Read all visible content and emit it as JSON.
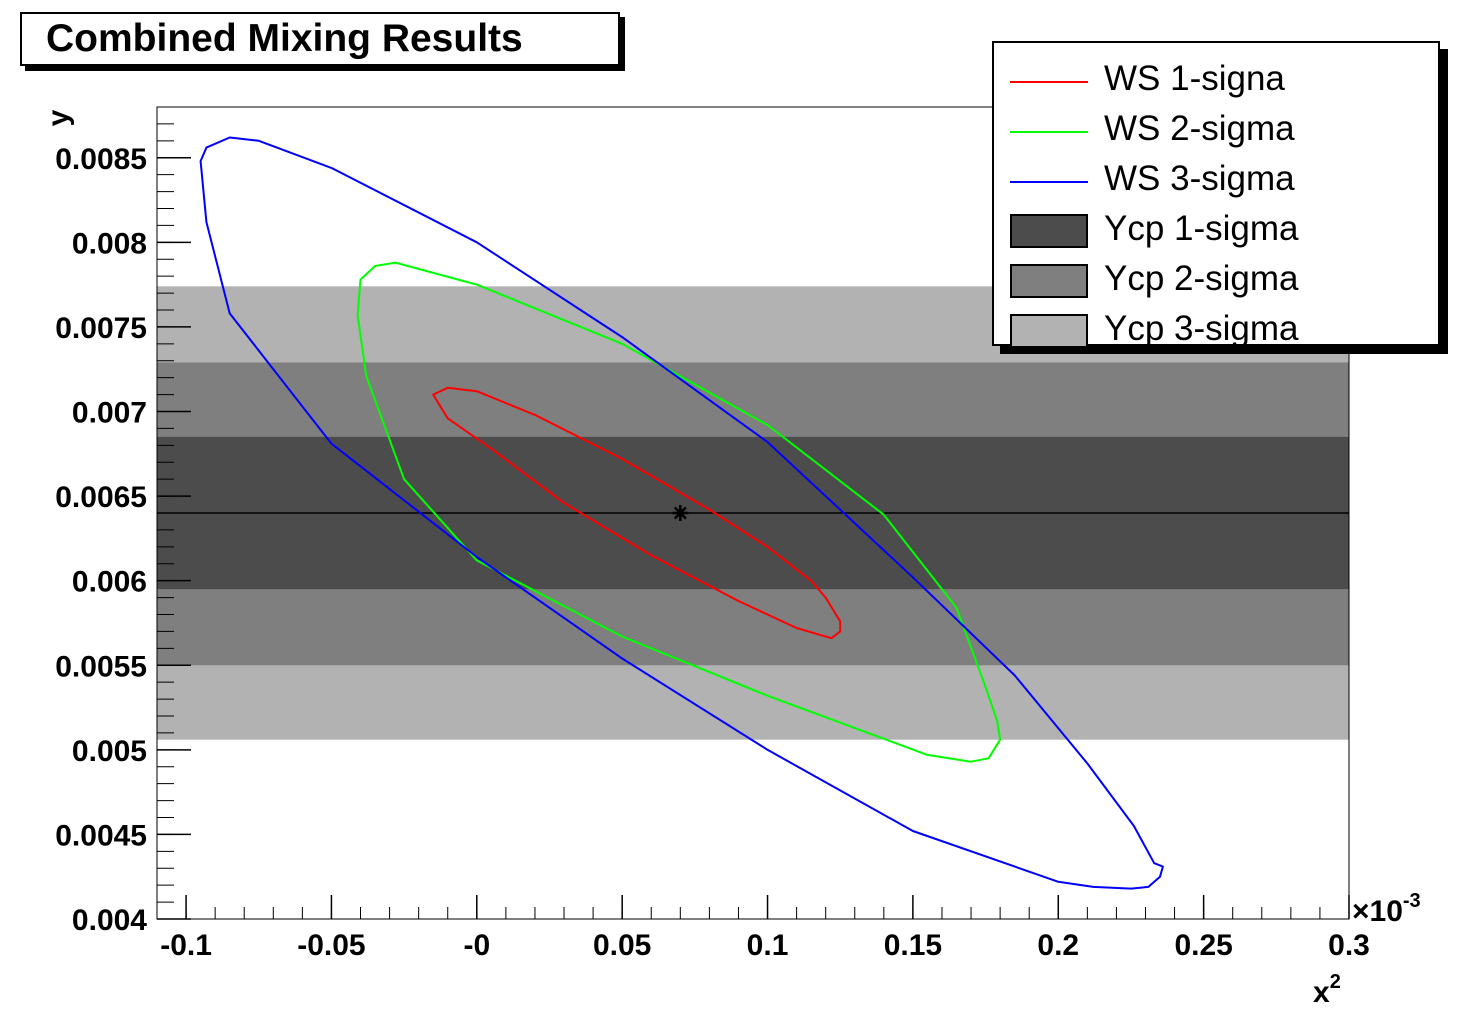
{
  "title": "Combined Mixing Results",
  "colors": {
    "background": "#ffffff",
    "frame": "#000000"
  },
  "legend": {
    "placement": "top-right",
    "entries": [
      {
        "label": "WS 1-signa",
        "kind": "line",
        "color": "#ff0000"
      },
      {
        "label": "WS 2-sigma",
        "kind": "line",
        "color": "#00ff00"
      },
      {
        "label": "WS 3-sigma",
        "kind": "line",
        "color": "#0000ff"
      },
      {
        "label": "Ycp 1-sigma",
        "kind": "fill",
        "color": "#4c4c4c"
      },
      {
        "label": "Ycp 2-sigma",
        "kind": "fill",
        "color": "#7f7f7f"
      },
      {
        "label": "Ycp 3-sigma",
        "kind": "fill",
        "color": "#b2b2b2"
      }
    ]
  },
  "chart_data": {
    "type": "line",
    "title": "Combined Mixing Results",
    "xlabel": "x",
    "xlabel_superscript": "2",
    "ylabel": "y",
    "x_exponent_label": "×10",
    "x_exponent_power": "-3",
    "xlim": [
      -0.11,
      0.3
    ],
    "ylim": [
      0.004,
      0.0088
    ],
    "x_ticks": [
      -0.1,
      -0.05,
      0,
      0.05,
      0.1,
      0.15,
      0.2,
      0.25,
      0.3
    ],
    "x_tick_labels": [
      "-0.1",
      "-0.05",
      "-0",
      "0.05",
      "0.1",
      "0.15",
      "0.2",
      "0.25",
      "0.3"
    ],
    "y_ticks": [
      0.004,
      0.0045,
      0.005,
      0.0055,
      0.006,
      0.0065,
      0.007,
      0.0075,
      0.008,
      0.0085
    ],
    "y_tick_labels": [
      "0.004",
      "0.0045",
      "0.005",
      "0.0055",
      "0.006",
      "0.0065",
      "0.007",
      "0.0075",
      "0.008",
      "0.0085"
    ],
    "grid": false,
    "bands": [
      {
        "name": "Ycp 3-sigma",
        "y_range": [
          0.00506,
          0.00774
        ],
        "color": "#b2b2b2"
      },
      {
        "name": "Ycp 2-sigma",
        "y_range": [
          0.0055,
          0.00729
        ],
        "color": "#7f7f7f"
      },
      {
        "name": "Ycp 1-sigma",
        "y_range": [
          0.00595,
          0.00685
        ],
        "color": "#4c4c4c"
      }
    ],
    "central_y": 0.0064,
    "best_fit_point": {
      "x": 0.07,
      "y": 0.0064
    },
    "series": [
      {
        "name": "WS 1-signa",
        "color": "#ff0000",
        "closed": true,
        "x": [
          -0.015,
          -0.01,
          0.0,
          0.02,
          0.05,
          0.08,
          0.1,
          0.115,
          0.12,
          0.125,
          0.125,
          0.122,
          0.11,
          0.09,
          0.06,
          0.03,
          0.005,
          -0.01,
          -0.015
        ],
        "y": [
          0.0071,
          0.00714,
          0.00712,
          0.00698,
          0.00672,
          0.00642,
          0.0062,
          0.006,
          0.0059,
          0.00576,
          0.0057,
          0.00566,
          0.00572,
          0.00588,
          0.00615,
          0.00646,
          0.00678,
          0.00696,
          0.0071
        ]
      },
      {
        "name": "WS 2-sigma",
        "color": "#00ff00",
        "closed": true,
        "x": [
          -0.04,
          -0.035,
          -0.028,
          0.0,
          0.05,
          0.1,
          0.14,
          0.165,
          0.175,
          0.179,
          0.18,
          0.176,
          0.17,
          0.155,
          0.1,
          0.05,
          0.0,
          -0.025,
          -0.038,
          -0.041,
          -0.04
        ],
        "y": [
          0.00778,
          0.00786,
          0.00788,
          0.00775,
          0.0074,
          0.00692,
          0.00639,
          0.00584,
          0.00537,
          0.00517,
          0.00506,
          0.00495,
          0.00493,
          0.00497,
          0.00532,
          0.00567,
          0.00612,
          0.0066,
          0.00721,
          0.00757,
          0.00778
        ]
      },
      {
        "name": "WS 3-sigma",
        "color": "#0000ff",
        "closed": true,
        "x": [
          -0.095,
          -0.093,
          -0.085,
          -0.075,
          -0.05,
          0.0,
          0.05,
          0.1,
          0.15,
          0.185,
          0.21,
          0.226,
          0.233,
          0.236,
          0.235,
          0.231,
          0.225,
          0.212,
          0.2,
          0.15,
          0.1,
          0.05,
          0.0,
          -0.05,
          -0.085,
          -0.093,
          -0.095
        ],
        "y": [
          0.00848,
          0.00856,
          0.00862,
          0.0086,
          0.00844,
          0.008,
          0.00744,
          0.00682,
          0.00602,
          0.00544,
          0.00492,
          0.00455,
          0.00433,
          0.00431,
          0.00425,
          0.00419,
          0.00418,
          0.00419,
          0.00422,
          0.00452,
          0.005,
          0.00554,
          0.00614,
          0.00681,
          0.00758,
          0.00812,
          0.00848
        ]
      }
    ]
  }
}
